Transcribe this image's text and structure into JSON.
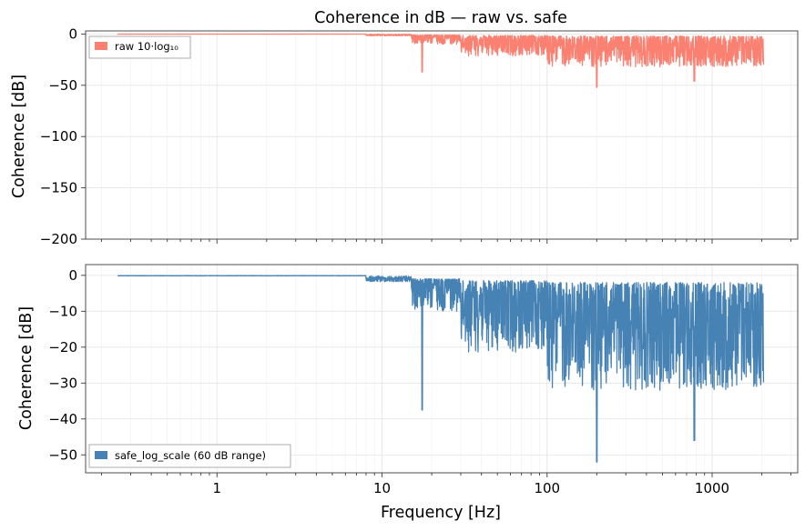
{
  "chart_data": [
    {
      "type": "line",
      "title": "Coherence in dB — raw vs. safe",
      "xlabel": "",
      "ylabel": "Coherence [dB]",
      "xscale": "log",
      "xlim": [
        0.16,
        3300
      ],
      "ylim": [
        -200,
        3
      ],
      "yticks": [
        0,
        -50,
        -100,
        -150,
        -200
      ],
      "ytick_labels": [
        "0",
        "−50",
        "−100",
        "−150",
        "−200"
      ],
      "xticks": [
        1,
        10,
        100,
        1000
      ],
      "xtick_labels": [],
      "grid": true,
      "legend_position": "upper-left",
      "series": [
        {
          "name": "raw 10·log₁₀",
          "color": "#fa8072",
          "x_range": [
            0.25,
            2048
          ],
          "deep_dips": [
            [
              17.5,
              -37
            ],
            [
              200,
              -52
            ],
            [
              780,
              -46
            ]
          ]
        }
      ]
    },
    {
      "type": "line",
      "title": "",
      "xlabel": "Frequency [Hz]",
      "ylabel": "Coherence [dB]",
      "xscale": "log",
      "xlim": [
        0.16,
        3300
      ],
      "ylim": [
        -55,
        3
      ],
      "yticks": [
        0,
        -10,
        -20,
        -30,
        -40,
        -50
      ],
      "ytick_labels": [
        "0",
        "−10",
        "−20",
        "−30",
        "−40",
        "−50"
      ],
      "xticks": [
        1,
        10,
        100,
        1000
      ],
      "xtick_labels": [
        "1",
        "10",
        "100",
        "1000"
      ],
      "grid": true,
      "legend_position": "lower-left",
      "series": [
        {
          "name": "safe_log_scale (60 dB range)",
          "color": "#4682b4",
          "x_range": [
            0.25,
            2048
          ],
          "deep_dips": [
            [
              17.5,
              -37.5
            ],
            [
              200,
              -52
            ],
            [
              780,
              -46
            ]
          ]
        }
      ]
    }
  ]
}
